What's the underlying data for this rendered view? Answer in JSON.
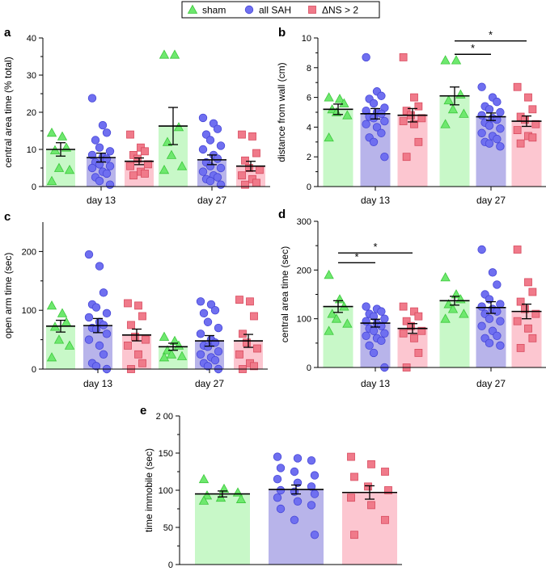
{
  "legend": {
    "items": [
      {
        "label": "sham",
        "marker": "triangle",
        "fill": "#6ee86e"
      },
      {
        "label": "all SAH",
        "marker": "circle",
        "fill": "#6f6ff0"
      },
      {
        "label": "ΔNS > 2",
        "marker": "square",
        "fill": "#f07a8a"
      }
    ]
  },
  "colors": {
    "sham_bar": "#c8f8c8",
    "sham_point": "#6ee86e",
    "sah_bar": "#b8b4ea",
    "sah_point": "#6f6ff0",
    "dns_bar": "#fcc6d0",
    "dns_point": "#f07a8a"
  },
  "chart_data": [
    {
      "panel": "a",
      "type": "bar",
      "ylabel": "central area time (% total)",
      "ylim": [
        0,
        40
      ],
      "yticks": [
        0,
        10,
        20,
        30,
        40
      ],
      "categories": [
        "day 13",
        "day 27"
      ],
      "series": [
        {
          "name": "sham",
          "means": [
            10,
            16.3
          ],
          "sems": [
            1.8,
            5.0
          ],
          "points": [
            [
              14.5,
              13.5,
              10.5,
              9.8,
              5.0,
              4.5,
              1.5
            ],
            [
              35.5,
              35.5,
              16.0,
              12.0,
              8.5,
              5.5,
              4.5
            ]
          ]
        },
        {
          "name": "all SAH",
          "means": [
            7.8,
            7.2
          ],
          "sems": [
            1.2,
            1.3
          ],
          "points": [
            [
              23.8,
              16.5,
              14.5,
              12.5,
              10.5,
              9.5,
              8.5,
              8.0,
              7.5,
              6.5,
              6.0,
              5.5,
              5.0,
              4.0,
              3.5,
              2.5,
              1.5,
              0.5
            ],
            [
              18.5,
              17.0,
              15.5,
              14.0,
              12.5,
              11.0,
              10.0,
              8.5,
              7.5,
              6.5,
              5.5,
              5.0,
              4.0,
              3.0,
              2.5,
              2.0,
              1.5,
              0.5
            ]
          ]
        },
        {
          "name": "ΔNS > 2",
          "means": [
            6.8,
            5.5
          ],
          "sems": [
            0.9,
            1.3
          ],
          "points": [
            [
              14.0,
              10.5,
              9.5,
              8.5,
              7.5,
              6.0,
              5.5,
              4.0,
              3.5,
              3.0
            ],
            [
              14.0,
              13.5,
              9.0,
              7.0,
              5.0,
              4.5,
              3.0,
              2.0,
              1.0,
              0.5
            ]
          ]
        }
      ],
      "significance": []
    },
    {
      "panel": "b",
      "type": "bar",
      "ylabel": "distance from wall (cm)",
      "ylim": [
        0,
        10
      ],
      "yticks": [
        0,
        2,
        4,
        6,
        8,
        10
      ],
      "categories": [
        "day 13",
        "day 27"
      ],
      "series": [
        {
          "name": "sham",
          "means": [
            5.2,
            6.1
          ],
          "sems": [
            0.35,
            0.6
          ],
          "points": [
            [
              6.0,
              5.9,
              5.6,
              5.2,
              5.0,
              4.8,
              3.3
            ],
            [
              8.5,
              8.5,
              6.2,
              5.8,
              5.2,
              4.9,
              4.2
            ]
          ]
        },
        {
          "name": "all SAH",
          "means": [
            4.9,
            4.7
          ],
          "sems": [
            0.35,
            0.25
          ],
          "points": [
            [
              8.7,
              6.4,
              6.1,
              5.9,
              5.6,
              5.3,
              5.1,
              5.0,
              4.9,
              4.7,
              4.6,
              4.4,
              4.2,
              4.0,
              3.6,
              3.3,
              3.0,
              2.0
            ],
            [
              6.7,
              6.0,
              5.7,
              5.4,
              5.2,
              5.0,
              4.8,
              4.6,
              4.5,
              4.3,
              4.1,
              3.9,
              3.6,
              3.4,
              3.2,
              3.0,
              2.9,
              2.7
            ]
          ]
        },
        {
          "name": "ΔNS > 2",
          "means": [
            4.8,
            4.4
          ],
          "sems": [
            0.45,
            0.35
          ],
          "points": [
            [
              8.7,
              6.0,
              5.4,
              5.1,
              4.8,
              4.6,
              4.4,
              4.2,
              3.0,
              2.0
            ],
            [
              6.7,
              6.0,
              5.2,
              4.7,
              4.5,
              4.2,
              3.8,
              3.4,
              3.3,
              2.9
            ]
          ]
        }
      ],
      "significance": [
        {
          "day": 1,
          "from": 0,
          "to": 1,
          "y": 8.9,
          "label": "*"
        },
        {
          "day": 1,
          "from": 0,
          "to": 2,
          "y": 9.8,
          "label": "*"
        }
      ]
    },
    {
      "panel": "c",
      "type": "bar",
      "ylabel": "open arm time (sec)",
      "ylim": [
        0,
        250
      ],
      "yticks": [
        0,
        100,
        200
      ],
      "ytick_labels": [
        "0",
        "100",
        "200"
      ],
      "categories": [
        "day 13",
        "day 27"
      ],
      "series": [
        {
          "name": "sham",
          "means": [
            73,
            38
          ],
          "sems": [
            10,
            6
          ],
          "points": [
            [
              108,
              95,
              80,
              72,
              50,
              40,
              20
            ],
            [
              55,
              48,
              40,
              32,
              25,
              22,
              20
            ]
          ]
        },
        {
          "name": "all SAH",
          "means": [
            74,
            48
          ],
          "sems": [
            12,
            9
          ],
          "points": [
            [
              195,
              175,
              130,
              110,
              105,
              95,
              88,
              80,
              75,
              70,
              68,
              60,
              50,
              40,
              25,
              10,
              5,
              0
            ],
            [
              115,
              110,
              100,
              95,
              80,
              70,
              60,
              50,
              45,
              40,
              38,
              30,
              25,
              20,
              15,
              10,
              5,
              0
            ]
          ]
        },
        {
          "name": "ΔNS > 2",
          "means": [
            58,
            48
          ],
          "sems": [
            10,
            11
          ],
          "points": [
            [
              112,
              108,
              90,
              75,
              55,
              50,
              40,
              25,
              10,
              0
            ],
            [
              118,
              115,
              90,
              60,
              45,
              35,
              25,
              10,
              5,
              0
            ]
          ]
        }
      ],
      "significance": []
    },
    {
      "panel": "d",
      "type": "bar",
      "ylabel": "central area time (sec)",
      "ylim": [
        0,
        300
      ],
      "yticks": [
        0,
        100,
        200,
        300
      ],
      "categories": [
        "day 13",
        "day 27"
      ],
      "series": [
        {
          "name": "sham",
          "means": [
            125,
            137
          ],
          "sems": [
            12,
            9
          ],
          "points": [
            [
              190,
              140,
              125,
              110,
              100,
              90,
              75
            ],
            [
              185,
              150,
              140,
              130,
              120,
              110,
              100
            ]
          ]
        },
        {
          "name": "all SAH",
          "means": [
            91,
            123
          ],
          "sems": [
            8,
            12
          ],
          "points": [
            [
              125,
              120,
              115,
              110,
              105,
              100,
              95,
              90,
              85,
              80,
              75,
              70,
              65,
              60,
              55,
              45,
              30,
              0
            ],
            [
              242,
              195,
              170,
              150,
              140,
              130,
              125,
              120,
              115,
              110,
              100,
              95,
              85,
              75,
              65,
              60,
              50,
              45
            ]
          ]
        },
        {
          "name": "ΔNS > 2",
          "means": [
            80,
            115
          ],
          "sems": [
            10,
            15
          ],
          "points": [
            [
              125,
              115,
              105,
              95,
              85,
              75,
              70,
              60,
              30,
              0
            ],
            [
              242,
              175,
              155,
              135,
              120,
              110,
              95,
              80,
              60,
              40
            ]
          ]
        }
      ],
      "significance": [
        {
          "day": 0,
          "from": 0,
          "to": 1,
          "y": 215,
          "label": "*"
        },
        {
          "day": 0,
          "from": 0,
          "to": 2,
          "y": 235,
          "label": "*"
        }
      ]
    },
    {
      "panel": "e",
      "type": "bar",
      "ylabel": "time immobile (sec)",
      "ylim": [
        0,
        200
      ],
      "yticks": [
        0,
        50,
        100,
        150,
        200
      ],
      "ytick_labels": [
        "0",
        "50",
        "100",
        "150",
        "2 00"
      ],
      "categories": [],
      "series": [
        {
          "name": "sham",
          "means": [
            95
          ],
          "sems": [
            4
          ],
          "points": [
            [
              115,
              102,
              97,
              93,
              90,
              88,
              86
            ]
          ]
        },
        {
          "name": "all SAH",
          "means": [
            101
          ],
          "sems": [
            6
          ],
          "points": [
            [
              145,
              143,
              140,
              130,
              125,
              120,
              115,
              110,
              105,
              100,
              98,
              95,
              90,
              85,
              80,
              75,
              60,
              40
            ]
          ]
        },
        {
          "name": "ΔNS > 2",
          "means": [
            97
          ],
          "sems": [
            9
          ],
          "points": [
            [
              145,
              135,
              125,
              118,
              105,
              100,
              90,
              80,
              60,
              40
            ]
          ]
        }
      ],
      "significance": []
    }
  ]
}
